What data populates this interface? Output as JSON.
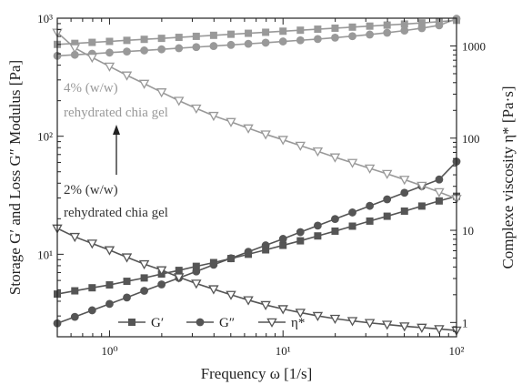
{
  "chart_data": {
    "type": "line",
    "scales": {
      "x": "log",
      "y_left": "log",
      "y_right": "log"
    },
    "xlim": [
      0.5,
      100
    ],
    "ylim_left": [
      2,
      1000
    ],
    "ylim_right": [
      0.7,
      2000
    ],
    "xlabel": "Frequency ω [1/s]",
    "ylabel_left": "Storage G′ and Loss G″ Modulus [Pa]",
    "ylabel_right": "Complexe viscosity η* [Pa·s]",
    "x_ticks": [
      {
        "value": 1,
        "label": "10⁰"
      },
      {
        "value": 10,
        "label": "10¹"
      },
      {
        "value": 100,
        "label": "10²"
      }
    ],
    "y_left_ticks": [
      {
        "value": 10,
        "label": "10¹"
      },
      {
        "value": 100,
        "label": "10²"
      },
      {
        "value": 1000,
        "label": "10³"
      }
    ],
    "y_right_ticks": [
      {
        "value": 1,
        "label": "1"
      },
      {
        "value": 10,
        "label": "10"
      },
      {
        "value": 100,
        "label": "100"
      },
      {
        "value": 1000,
        "label": "1000"
      }
    ],
    "x": [
      0.5,
      0.631,
      0.794,
      1.0,
      1.259,
      1.585,
      1.995,
      2.512,
      3.162,
      3.981,
      5.012,
      6.31,
      7.943,
      10.0,
      12.59,
      15.85,
      19.95,
      25.12,
      31.62,
      39.81,
      50.12,
      63.1,
      79.43,
      100.0
    ],
    "series": [
      {
        "group": "2% (w/w) rehydrated chia gel",
        "name": "G′",
        "axis": "left",
        "marker": "square",
        "color": "#555555",
        "values": [
          4.6,
          4.9,
          5.2,
          5.5,
          5.9,
          6.3,
          6.8,
          7.3,
          7.9,
          8.5,
          9.2,
          10.0,
          10.9,
          11.9,
          13.0,
          14.3,
          15.7,
          17.3,
          19.1,
          21.0,
          23.2,
          25.6,
          28.3,
          31.0
        ]
      },
      {
        "group": "2% (w/w) rehydrated chia gel",
        "name": "G″",
        "axis": "left",
        "marker": "circle",
        "color": "#555555",
        "values": [
          2.6,
          2.95,
          3.35,
          3.8,
          4.3,
          4.9,
          5.55,
          6.3,
          7.15,
          8.15,
          9.25,
          10.5,
          11.9,
          13.5,
          15.4,
          17.5,
          19.9,
          22.6,
          25.7,
          29.2,
          33.2,
          37.8,
          43.0,
          61.0
        ]
      },
      {
        "group": "2% (w/w) rehydrated chia gel",
        "name": "η*",
        "axis": "right",
        "marker": "triangle-down",
        "color": "#555555",
        "values": [
          10.5,
          8.5,
          7.2,
          6.1,
          5.1,
          4.3,
          3.7,
          3.1,
          2.65,
          2.3,
          2.0,
          1.75,
          1.55,
          1.4,
          1.28,
          1.18,
          1.1,
          1.04,
          0.99,
          0.95,
          0.91,
          0.88,
          0.85,
          0.82
        ]
      },
      {
        "group": "4% (w/w) rehydrated chia gel",
        "name": "G′",
        "axis": "left",
        "marker": "square",
        "color": "#999999",
        "values": [
          600,
          612,
          624,
          636,
          649,
          662,
          675,
          688,
          702,
          716,
          731,
          745,
          760,
          776,
          791,
          807,
          823,
          840,
          857,
          874,
          892,
          912,
          935,
          960
        ]
      },
      {
        "group": "4% (w/w) rehydrated chia gel",
        "name": "G″",
        "axis": "left",
        "marker": "circle",
        "color": "#999999",
        "values": [
          480,
          490,
          500,
          511,
          522,
          533,
          545,
          557,
          569,
          581,
          594,
          607,
          620,
          635,
          650,
          666,
          684,
          704,
          727,
          753,
          785,
          823,
          870,
          990
        ]
      },
      {
        "group": "4% (w/w) rehydrated chia gel",
        "name": "η*",
        "axis": "right",
        "marker": "triangle-down",
        "color": "#999999",
        "values": [
          1400,
          950,
          750,
          600,
          480,
          390,
          315,
          255,
          210,
          175,
          150,
          128,
          110,
          96,
          83,
          72,
          62,
          54,
          47,
          41,
          35.5,
          30.5,
          26,
          22
        ]
      }
    ],
    "legend": [
      {
        "label": "G′",
        "marker": "square"
      },
      {
        "label": "G″",
        "marker": "circle"
      },
      {
        "label": "η*",
        "marker": "triangle-down"
      }
    ],
    "legend_placement": "bottom-center",
    "annotations": {
      "gel4_line1": "4% (w/w)",
      "gel4_line2": "rehydrated chia gel",
      "gel2_line1": "2% (w/w)",
      "gel2_line2": "rehydrated chia gel"
    },
    "grid": false
  }
}
